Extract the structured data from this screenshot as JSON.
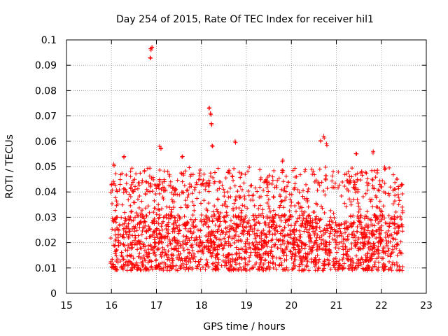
{
  "chart_data": {
    "type": "scatter",
    "title": "Day 254 of 2015, Rate Of TEC Index for receiver hil1",
    "xlabel": "GPS time / hours",
    "ylabel": "ROTI / TECUs",
    "xlim": [
      15,
      23
    ],
    "ylim": [
      0,
      0.1
    ],
    "xticks": [
      15,
      16,
      17,
      18,
      19,
      20,
      21,
      22,
      23
    ],
    "yticks": [
      0,
      0.01,
      0.02,
      0.03,
      0.04,
      0.05,
      0.06,
      0.07,
      0.08,
      0.09,
      0.1
    ],
    "xtick_labels": [
      "15",
      "16",
      "17",
      "18",
      "19",
      "20",
      "21",
      "22",
      "23"
    ],
    "ytick_labels": [
      "0",
      "0.01",
      "0.02",
      "0.03",
      "0.04",
      "0.05",
      "0.06",
      "0.07",
      "0.08",
      "0.09",
      "0.1"
    ],
    "grid": true,
    "marker": "+",
    "series": [
      {
        "name": "ROTI",
        "color": "#ff0000",
        "x_range": [
          15.98,
          22.48
        ],
        "typical_range": [
          0.005,
          0.045
        ],
        "highlights": [
          {
            "x": 16.86,
            "y": 0.093
          },
          {
            "x": 16.88,
            "y": 0.096
          },
          {
            "x": 16.9,
            "y": 0.097
          },
          {
            "x": 18.17,
            "y": 0.073
          },
          {
            "x": 18.2,
            "y": 0.071
          },
          {
            "x": 18.22,
            "y": 0.067
          },
          {
            "x": 18.25,
            "y": 0.058
          },
          {
            "x": 17.07,
            "y": 0.058
          },
          {
            "x": 17.1,
            "y": 0.057
          },
          {
            "x": 18.75,
            "y": 0.06
          },
          {
            "x": 20.65,
            "y": 0.06
          },
          {
            "x": 20.72,
            "y": 0.062
          },
          {
            "x": 20.78,
            "y": 0.059
          },
          {
            "x": 21.82,
            "y": 0.056
          },
          {
            "x": 21.45,
            "y": 0.055
          },
          {
            "x": 16.28,
            "y": 0.054
          },
          {
            "x": 17.58,
            "y": 0.054
          },
          {
            "x": 16.05,
            "y": 0.051
          },
          {
            "x": 19.8,
            "y": 0.052
          },
          {
            "x": 22.35,
            "y": 0.045
          },
          {
            "x": 22.45,
            "y": 0.043
          }
        ]
      }
    ]
  }
}
